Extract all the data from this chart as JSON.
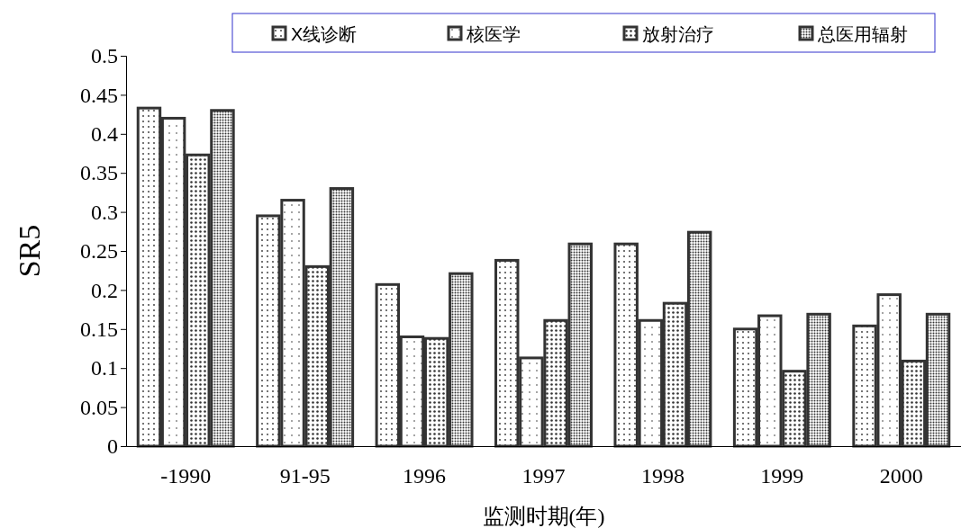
{
  "chart_data": {
    "type": "bar",
    "categories": [
      "-1990",
      "91-95",
      "1996",
      "1997",
      "1998",
      "1999",
      "2000"
    ],
    "series": [
      {
        "name": "X线诊断",
        "color": "#333333",
        "values": [
          0.433,
          0.295,
          0.207,
          0.238,
          0.259,
          0.15,
          0.154
        ]
      },
      {
        "name": "核医学",
        "color": "#333333",
        "values": [
          0.42,
          0.315,
          0.14,
          0.113,
          0.161,
          0.167,
          0.194
        ]
      },
      {
        "name": "放射治疗",
        "color": "#333333",
        "values": [
          0.373,
          0.23,
          0.138,
          0.161,
          0.183,
          0.096,
          0.109
        ]
      },
      {
        "name": "总医用辐射",
        "color": "#333333",
        "values": [
          0.43,
          0.33,
          0.221,
          0.259,
          0.274,
          0.169,
          0.169
        ]
      }
    ],
    "ylim": [
      0,
      0.5
    ],
    "yticks": [
      0,
      0.05,
      0.1,
      0.15,
      0.2,
      0.25,
      0.3,
      0.35,
      0.4,
      0.45,
      0.5
    ],
    "xlabel": "监测时期(年)",
    "ylabel": "SR5",
    "legend": "top",
    "grid": false
  }
}
